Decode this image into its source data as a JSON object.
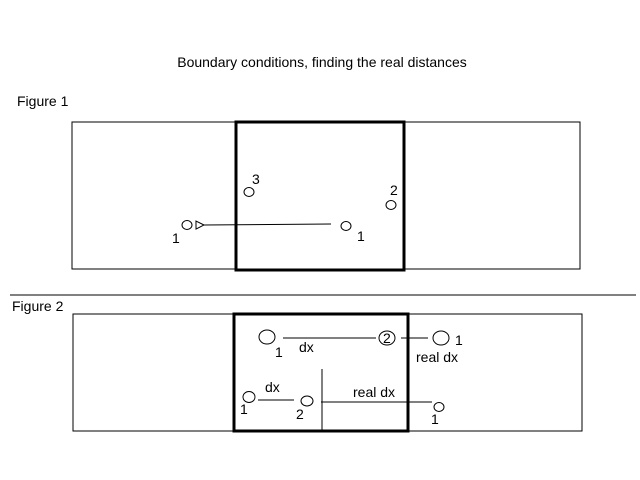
{
  "title": "Boundary conditions, finding the real distances",
  "figure1": {
    "label": "Figure 1",
    "particles": [
      "3",
      "2",
      "1",
      "1"
    ]
  },
  "figure2": {
    "label": "Figure 2",
    "top_row": {
      "particles": [
        "1",
        "2",
        "1"
      ],
      "dx_label": "dx",
      "real_dx_label": "real dx"
    },
    "bottom_row": {
      "particles": [
        "1",
        "2",
        "1"
      ],
      "dx_label": "dx",
      "real_dx_label": "real dx"
    }
  }
}
